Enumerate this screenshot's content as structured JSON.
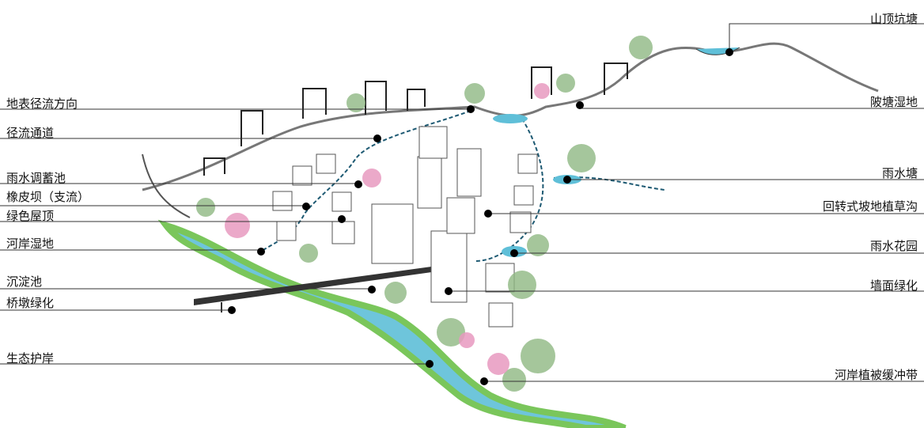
{
  "labels_left": [
    {
      "text": "地表径流方向"
    },
    {
      "text": "径流通道"
    },
    {
      "text": "雨水调蓄池"
    },
    {
      "text": "橡皮坝（支流）"
    },
    {
      "text": "绿色屋顶"
    },
    {
      "text": "河岸湿地"
    },
    {
      "text": "沉淀池"
    },
    {
      "text": "桥墩绿化"
    },
    {
      "text": "生态护岸"
    }
  ],
  "labels_right": [
    {
      "text": "山顶坑塘"
    },
    {
      "text": "陂塘湿地"
    },
    {
      "text": "雨水塘"
    },
    {
      "text": "回转式坡地植草沟"
    },
    {
      "text": "雨水花园"
    },
    {
      "text": "墙面绿化"
    },
    {
      "text": "河岸植被缓冲带"
    }
  ]
}
